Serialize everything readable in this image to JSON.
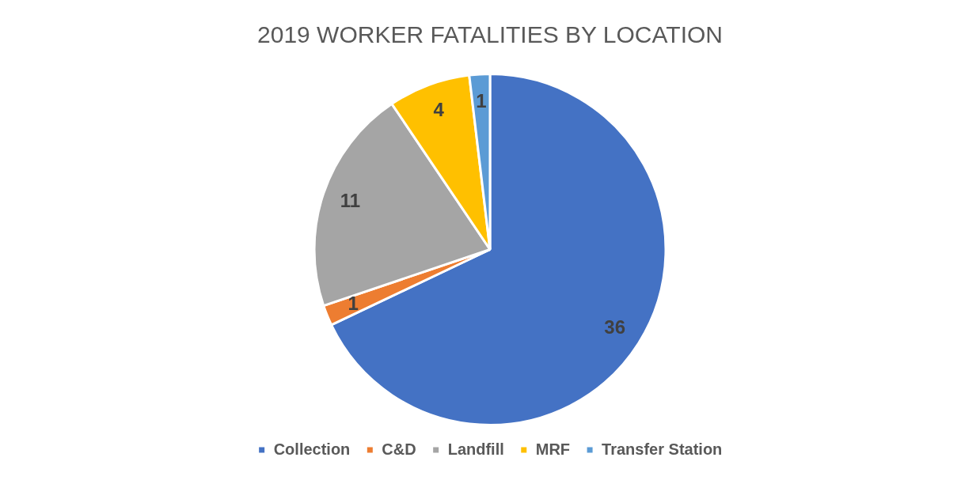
{
  "chart_data": {
    "type": "pie",
    "title": "2019 WORKER FATALITIES BY LOCATION",
    "categories": [
      "Collection",
      "C&D",
      "Landfill",
      "MRF",
      "Transfer Station"
    ],
    "values": [
      36,
      1,
      11,
      4,
      1
    ],
    "colors": [
      "#4472c4",
      "#ed7d31",
      "#a5a5a5",
      "#ffc000",
      "#5b9bd5"
    ],
    "data_labels": true,
    "legend": "bottom"
  }
}
